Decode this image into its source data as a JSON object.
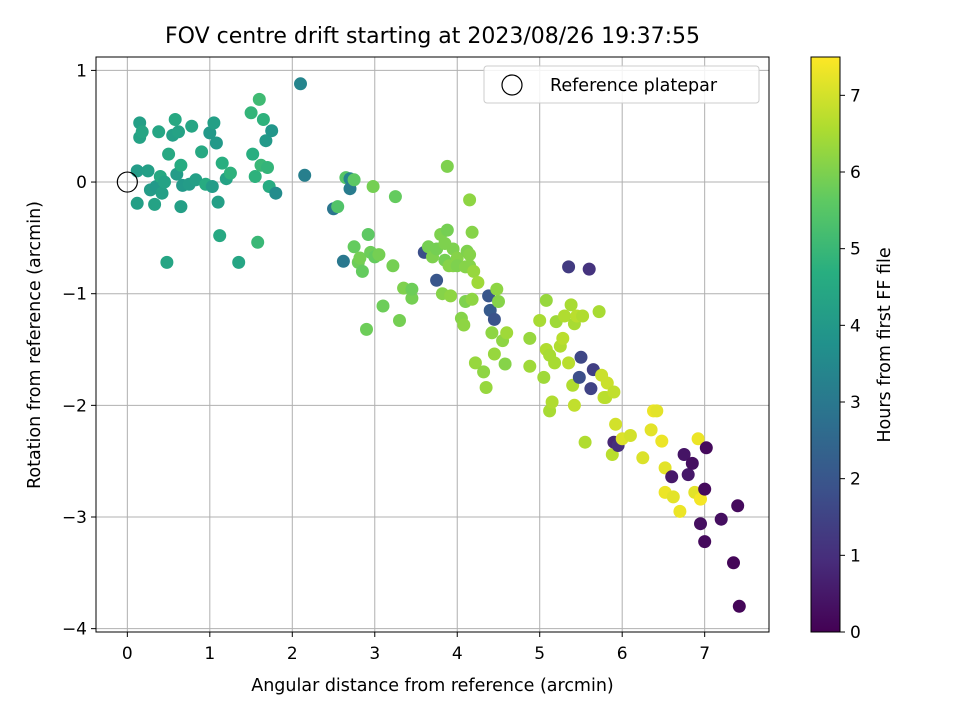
{
  "chart_data": {
    "type": "scatter",
    "title": "FOV centre drift starting at 2023/08/26 19:37:55",
    "xlabel": "Angular distance from reference (arcmin)",
    "ylabel": "Rotation from reference (arcmin)",
    "xlim": [
      -0.38,
      7.78
    ],
    "ylim": [
      -4.03,
      1.12
    ],
    "xticks": [
      0,
      1,
      2,
      3,
      4,
      5,
      6,
      7
    ],
    "yticks": [
      -4,
      -3,
      -2,
      -1,
      0,
      1
    ],
    "grid": true,
    "legend": {
      "placement": "top-right",
      "entries": [
        "Reference platepar"
      ]
    },
    "colorbar": {
      "label": "Hours from first FF file",
      "colormap": "viridis",
      "range": [
        0,
        7.5
      ],
      "ticks": [
        0,
        1,
        2,
        3,
        4,
        5,
        6,
        7
      ]
    },
    "reference_point": {
      "x": 0,
      "y": 0
    },
    "points": [
      [
        0.15,
        0.53,
        4.2
      ],
      [
        0.15,
        0.4,
        4.3
      ],
      [
        0.12,
        0.1,
        4.1
      ],
      [
        0.12,
        -0.19,
        4.2
      ],
      [
        0.18,
        0.45,
        4.4
      ],
      [
        0.25,
        0.1,
        4.2
      ],
      [
        0.28,
        -0.07,
        4.1
      ],
      [
        0.33,
        -0.2,
        4.3
      ],
      [
        0.35,
        -0.04,
        4.0
      ],
      [
        0.38,
        0.45,
        4.4
      ],
      [
        0.4,
        0.05,
        4.5
      ],
      [
        0.42,
        -0.1,
        4.2
      ],
      [
        0.45,
        0.0,
        4.3
      ],
      [
        0.48,
        -0.72,
        4.4
      ],
      [
        0.5,
        0.25,
        4.5
      ],
      [
        0.55,
        0.42,
        4.2
      ],
      [
        0.58,
        0.56,
        4.5
      ],
      [
        0.6,
        0.07,
        4.1
      ],
      [
        0.62,
        0.45,
        4.3
      ],
      [
        0.65,
        0.15,
        4.6
      ],
      [
        0.65,
        -0.22,
        4.2
      ],
      [
        0.67,
        -0.03,
        4.0
      ],
      [
        0.75,
        -0.02,
        4.1
      ],
      [
        0.78,
        0.5,
        4.4
      ],
      [
        0.83,
        0.02,
        4.2
      ],
      [
        0.9,
        0.27,
        4.5
      ],
      [
        0.95,
        -0.02,
        4.6
      ],
      [
        1.0,
        0.44,
        4.0
      ],
      [
        1.03,
        -0.04,
        4.1
      ],
      [
        1.05,
        0.53,
        4.2
      ],
      [
        1.08,
        0.35,
        4.0
      ],
      [
        1.1,
        -0.18,
        4.2
      ],
      [
        1.12,
        -0.48,
        4.5
      ],
      [
        1.15,
        0.17,
        4.7
      ],
      [
        1.2,
        0.03,
        4.3
      ],
      [
        1.25,
        0.08,
        4.8
      ],
      [
        1.35,
        -0.72,
        4.4
      ],
      [
        1.5,
        0.62,
        4.9
      ],
      [
        1.52,
        0.25,
        4.7
      ],
      [
        1.55,
        0.05,
        4.8
      ],
      [
        1.58,
        -0.54,
        5.0
      ],
      [
        1.6,
        0.74,
        5.1
      ],
      [
        1.62,
        0.15,
        5.0
      ],
      [
        1.65,
        0.56,
        4.8
      ],
      [
        1.7,
        0.13,
        4.9
      ],
      [
        1.72,
        -0.04,
        4.6
      ],
      [
        1.68,
        0.37,
        4.0
      ],
      [
        1.75,
        0.46,
        3.9
      ],
      [
        1.8,
        -0.1,
        3.6
      ],
      [
        2.1,
        0.88,
        3.4
      ],
      [
        2.15,
        0.06,
        3.2
      ],
      [
        2.5,
        -0.24,
        2.9
      ],
      [
        2.55,
        -0.22,
        5.4
      ],
      [
        2.62,
        -0.71,
        3.0
      ],
      [
        2.65,
        0.04,
        5.5
      ],
      [
        2.7,
        0.03,
        3.4
      ],
      [
        2.7,
        -0.06,
        3.1
      ],
      [
        2.75,
        0.02,
        5.6
      ],
      [
        2.75,
        -0.58,
        5.7
      ],
      [
        2.8,
        -0.72,
        5.8
      ],
      [
        2.82,
        -0.68,
        5.9
      ],
      [
        2.85,
        -0.8,
        5.7
      ],
      [
        2.9,
        -1.32,
        5.8
      ],
      [
        2.92,
        -0.47,
        5.6
      ],
      [
        2.95,
        -0.63,
        5.8
      ],
      [
        2.98,
        -0.04,
        5.9
      ],
      [
        3.0,
        -0.67,
        5.7
      ],
      [
        3.05,
        -0.65,
        5.9
      ],
      [
        3.1,
        -1.11,
        5.8
      ],
      [
        3.22,
        -0.75,
        5.9
      ],
      [
        3.25,
        -0.13,
        5.7
      ],
      [
        3.3,
        -1.24,
        5.9
      ],
      [
        3.35,
        -0.95,
        6.0
      ],
      [
        3.45,
        -1.04,
        5.9
      ],
      [
        3.45,
        -0.96,
        5.8
      ],
      [
        3.6,
        -0.63,
        1.8
      ],
      [
        3.65,
        -0.58,
        5.9
      ],
      [
        3.7,
        -0.67,
        6.0
      ],
      [
        3.75,
        -0.88,
        2.0
      ],
      [
        3.75,
        -0.6,
        5.9
      ],
      [
        3.8,
        -0.47,
        6.0
      ],
      [
        3.82,
        -1.0,
        6.1
      ],
      [
        3.85,
        -0.55,
        6.0
      ],
      [
        3.85,
        -0.7,
        5.9
      ],
      [
        3.88,
        0.14,
        6.0
      ],
      [
        3.88,
        -0.43,
        5.9
      ],
      [
        3.9,
        -0.75,
        6.1
      ],
      [
        3.92,
        -1.02,
        6.2
      ],
      [
        3.95,
        -0.6,
        6.0
      ],
      [
        3.95,
        -0.75,
        6.1
      ],
      [
        4.0,
        -0.68,
        6.1
      ],
      [
        4.0,
        -0.75,
        6.0
      ],
      [
        4.05,
        -1.22,
        6.1
      ],
      [
        4.08,
        -1.28,
        6.2
      ],
      [
        4.1,
        -1.07,
        6.0
      ],
      [
        4.1,
        -0.76,
        6.1
      ],
      [
        4.12,
        -0.62,
        6.0
      ],
      [
        4.15,
        -0.65,
        6.1
      ],
      [
        4.15,
        -0.16,
        6.2
      ],
      [
        4.15,
        -0.75,
        6.1
      ],
      [
        4.18,
        -1.05,
        6.2
      ],
      [
        4.18,
        -0.45,
        6.1
      ],
      [
        4.2,
        -0.8,
        6.3
      ],
      [
        4.22,
        -1.62,
        6.3
      ],
      [
        4.25,
        -0.9,
        6.4
      ],
      [
        4.32,
        -1.7,
        6.2
      ],
      [
        4.35,
        -1.84,
        6.3
      ],
      [
        4.38,
        -1.02,
        2.0
      ],
      [
        4.4,
        -1.15,
        2.1
      ],
      [
        4.42,
        -1.35,
        6.2
      ],
      [
        4.45,
        -1.23,
        1.9
      ],
      [
        4.45,
        -1.54,
        6.3
      ],
      [
        4.48,
        -0.96,
        6.2
      ],
      [
        4.5,
        -1.07,
        6.1
      ],
      [
        4.55,
        -1.42,
        6.2
      ],
      [
        4.58,
        -1.63,
        6.1
      ],
      [
        4.6,
        -1.35,
        6.4
      ],
      [
        4.88,
        -1.4,
        6.3
      ],
      [
        4.88,
        -1.65,
        6.4
      ],
      [
        5.0,
        -1.24,
        6.5
      ],
      [
        5.05,
        -1.75,
        6.4
      ],
      [
        5.08,
        -1.06,
        6.3
      ],
      [
        5.08,
        -1.5,
        6.6
      ],
      [
        5.12,
        -1.55,
        6.5
      ],
      [
        5.12,
        -2.05,
        6.5
      ],
      [
        5.15,
        -1.97,
        6.6
      ],
      [
        5.18,
        -1.62,
        6.5
      ],
      [
        5.2,
        -1.25,
        6.4
      ],
      [
        5.25,
        -1.47,
        6.6
      ],
      [
        5.28,
        -1.4,
        6.7
      ],
      [
        5.3,
        -1.2,
        6.6
      ],
      [
        5.35,
        -1.62,
        6.7
      ],
      [
        5.35,
        -0.76,
        1.3
      ],
      [
        5.38,
        -1.1,
        6.5
      ],
      [
        5.4,
        -1.82,
        6.6
      ],
      [
        5.42,
        -2.0,
        6.8
      ],
      [
        5.42,
        -1.27,
        6.5
      ],
      [
        5.45,
        -1.2,
        6.7
      ],
      [
        5.48,
        -1.75,
        1.8
      ],
      [
        5.5,
        -1.57,
        1.6
      ],
      [
        5.52,
        -1.2,
        6.6
      ],
      [
        5.55,
        -2.33,
        6.6
      ],
      [
        5.6,
        -0.78,
        1.1
      ],
      [
        5.62,
        -1.85,
        1.5
      ],
      [
        5.65,
        -1.68,
        1.4
      ],
      [
        5.72,
        -1.16,
        6.5
      ],
      [
        5.75,
        -1.73,
        6.9
      ],
      [
        5.78,
        -1.93,
        6.8
      ],
      [
        5.8,
        -1.93,
        6.7
      ],
      [
        5.82,
        -1.8,
        6.9
      ],
      [
        5.88,
        -2.44,
        6.7
      ],
      [
        5.9,
        -2.33,
        0.8
      ],
      [
        5.9,
        -1.88,
        6.8
      ],
      [
        5.92,
        -2.17,
        7.0
      ],
      [
        5.95,
        -2.36,
        1.0
      ],
      [
        6.0,
        -2.3,
        7.1
      ],
      [
        6.1,
        -2.27,
        7.0
      ],
      [
        6.25,
        -2.47,
        7.1
      ],
      [
        6.35,
        -2.22,
        7.2
      ],
      [
        6.38,
        -2.05,
        7.3
      ],
      [
        6.42,
        -2.05,
        7.2
      ],
      [
        6.48,
        -2.32,
        7.3
      ],
      [
        6.52,
        -2.56,
        7.2
      ],
      [
        6.52,
        -2.78,
        7.3
      ],
      [
        6.6,
        -2.64,
        0.5
      ],
      [
        6.62,
        -2.82,
        7.2
      ],
      [
        6.7,
        -2.95,
        7.3
      ],
      [
        6.75,
        -2.44,
        0.4
      ],
      [
        6.8,
        -2.62,
        0.5
      ],
      [
        6.85,
        -2.52,
        0.3
      ],
      [
        6.88,
        -2.78,
        7.2
      ],
      [
        6.92,
        -2.3,
        7.3
      ],
      [
        6.95,
        -2.84,
        7.4
      ],
      [
        6.95,
        -3.06,
        0.3
      ],
      [
        7.0,
        -3.22,
        0.2
      ],
      [
        7.0,
        -2.75,
        0.2
      ],
      [
        7.02,
        -2.38,
        0.2
      ],
      [
        7.2,
        -3.02,
        0.3
      ],
      [
        7.35,
        -3.41,
        0.1
      ],
      [
        7.4,
        -2.9,
        0.2
      ],
      [
        7.42,
        -3.8,
        0.1
      ]
    ]
  }
}
